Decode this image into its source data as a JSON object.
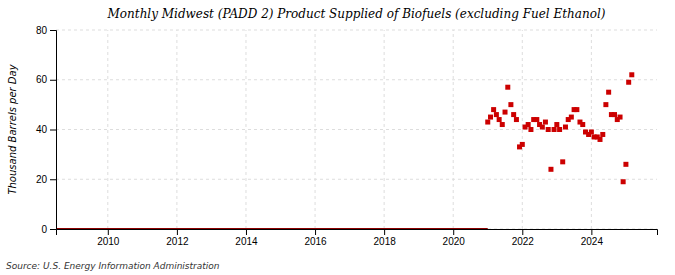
{
  "chart_data": {
    "type": "scatter",
    "title": "Monthly Midwest (PADD 2) Product Supplied of Biofuels (excluding Fuel Ethanol)",
    "ylabel": "Thousand Barrels per Day",
    "source": "Source: U.S. Energy Information Administration",
    "xlim": [
      2008.5,
      2025.9
    ],
    "xticks": [
      2010,
      2012,
      2014,
      2016,
      2018,
      2020,
      2022,
      2024
    ],
    "ylim": [
      0,
      80
    ],
    "yticks": [
      0,
      20,
      40,
      60,
      80
    ],
    "grid": true,
    "series": [
      {
        "type": "line",
        "color": "#8b0000",
        "x": [
          2008.5,
          2021.0
        ],
        "values": [
          0,
          0
        ]
      },
      {
        "type": "scatter",
        "color": "#cc0000",
        "marker": "square",
        "x": [
          2021.0,
          2021.08,
          2021.17,
          2021.25,
          2021.33,
          2021.42,
          2021.5,
          2021.58,
          2021.67,
          2021.75,
          2021.83,
          2021.92,
          2022.0,
          2022.08,
          2022.17,
          2022.25,
          2022.33,
          2022.42,
          2022.5,
          2022.58,
          2022.67,
          2022.75,
          2022.83,
          2022.92,
          2023.0,
          2023.08,
          2023.17,
          2023.25,
          2023.33,
          2023.42,
          2023.5,
          2023.58,
          2023.67,
          2023.75,
          2023.83,
          2023.92,
          2024.0,
          2024.08,
          2024.17,
          2024.25,
          2024.33,
          2024.42,
          2024.5,
          2024.58,
          2024.67,
          2024.75,
          2024.83,
          2024.92,
          2025.0,
          2025.08,
          2025.17
        ],
        "values": [
          43,
          45,
          48,
          46,
          44,
          42,
          47,
          57,
          50,
          46,
          44,
          33,
          34,
          41,
          42,
          40,
          44,
          44,
          42,
          41,
          43,
          40,
          24,
          40,
          42,
          40,
          27,
          41,
          44,
          45,
          48,
          48,
          43,
          42,
          39,
          38,
          39,
          37,
          37,
          36,
          38,
          50,
          55,
          46,
          46,
          44,
          45,
          19,
          26,
          59,
          62
        ]
      }
    ]
  }
}
